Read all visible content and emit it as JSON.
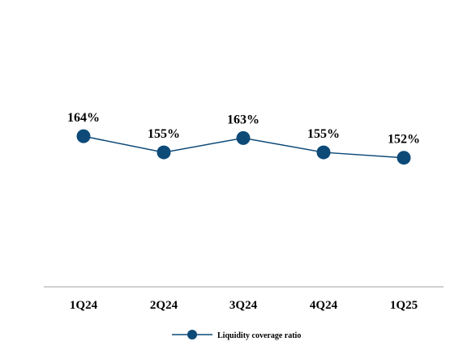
{
  "chart_data": {
    "type": "line",
    "categories": [
      "1Q24",
      "2Q24",
      "3Q24",
      "4Q24",
      "1Q25"
    ],
    "series": [
      {
        "name": "Liquidity coverage ratio",
        "values": [
          164,
          155,
          163,
          155,
          152
        ],
        "labels": [
          "164%",
          "155%",
          "163%",
          "155%",
          "152%"
        ]
      }
    ],
    "ylim": [
      80,
      240
    ],
    "grid": false,
    "legend_position": "bottom-center",
    "colors": {
      "series": "#0d4a78",
      "axis": "#b3b3b3",
      "text": "#000000"
    }
  }
}
